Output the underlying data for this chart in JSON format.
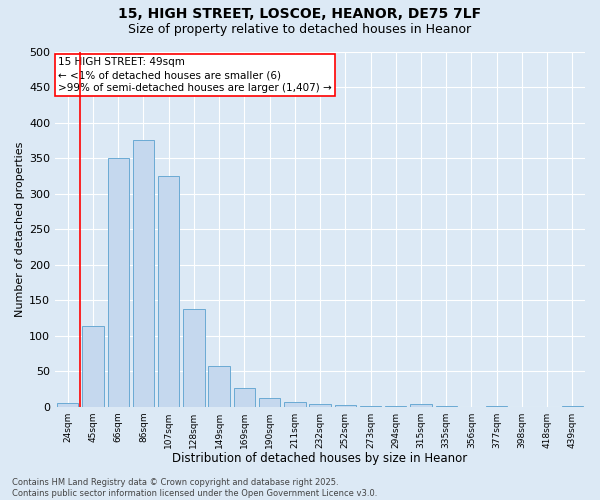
{
  "title_line1": "15, HIGH STREET, LOSCOE, HEANOR, DE75 7LF",
  "title_line2": "Size of property relative to detached houses in Heanor",
  "xlabel": "Distribution of detached houses by size in Heanor",
  "ylabel": "Number of detached properties",
  "bar_color": "#c5d8ee",
  "bar_edge_color": "#6aaad4",
  "background_color": "#dce9f5",
  "categories": [
    "24sqm",
    "45sqm",
    "66sqm",
    "86sqm",
    "107sqm",
    "128sqm",
    "149sqm",
    "169sqm",
    "190sqm",
    "211sqm",
    "232sqm",
    "252sqm",
    "273sqm",
    "294sqm",
    "315sqm",
    "335sqm",
    "356sqm",
    "377sqm",
    "398sqm",
    "418sqm",
    "439sqm"
  ],
  "values": [
    5,
    113,
    350,
    376,
    325,
    138,
    57,
    26,
    12,
    7,
    4,
    2,
    1,
    1,
    4,
    1,
    0,
    1,
    0,
    0,
    1
  ],
  "ylim": [
    0,
    500
  ],
  "yticks": [
    0,
    50,
    100,
    150,
    200,
    250,
    300,
    350,
    400,
    450,
    500
  ],
  "red_line_x": 0.5,
  "annotation_title": "15 HIGH STREET: 49sqm",
  "annotation_line2": "← <1% of detached houses are smaller (6)",
  "annotation_line3": ">99% of semi-detached houses are larger (1,407) →",
  "footer_line1": "Contains HM Land Registry data © Crown copyright and database right 2025.",
  "footer_line2": "Contains public sector information licensed under the Open Government Licence v3.0.",
  "grid_color": "#ffffff",
  "title_fontsize": 10,
  "subtitle_fontsize": 9,
  "ylabel_fontsize": 8,
  "xlabel_fontsize": 8.5,
  "ytick_fontsize": 8,
  "xtick_fontsize": 6.5,
  "annotation_fontsize": 7.5,
  "footer_fontsize": 6
}
